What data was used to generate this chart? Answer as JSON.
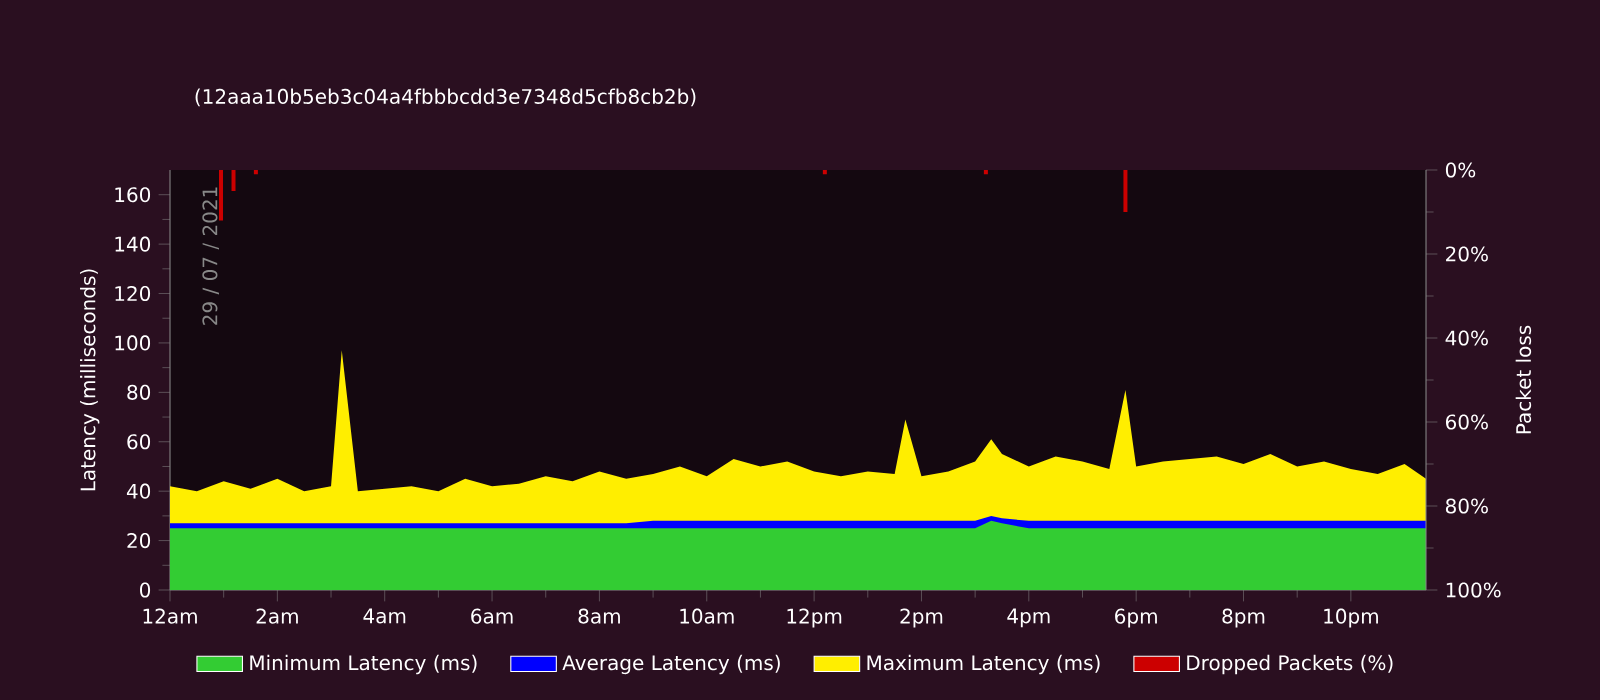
{
  "chart_data": {
    "type": "area",
    "title": "(12aaa10b5eb3c04a4fbbbcdd3e7348d5cfb8cb2b)",
    "ylabel": "Latency (milliseconds)",
    "y2label": "Packet loss",
    "annotations": [
      "29 / 07 / 2021"
    ],
    "x": [
      "2021-07-29T00:00",
      "2021-07-29T00:30",
      "2021-07-29T01:00",
      "2021-07-29T01:30",
      "2021-07-29T02:00",
      "2021-07-29T02:30",
      "2021-07-29T03:00",
      "2021-07-29T03:12",
      "2021-07-29T03:30",
      "2021-07-29T04:00",
      "2021-07-29T04:30",
      "2021-07-29T05:00",
      "2021-07-29T05:30",
      "2021-07-29T06:00",
      "2021-07-29T06:30",
      "2021-07-29T07:00",
      "2021-07-29T07:30",
      "2021-07-29T08:00",
      "2021-07-29T08:30",
      "2021-07-29T09:00",
      "2021-07-29T09:30",
      "2021-07-29T10:00",
      "2021-07-29T10:30",
      "2021-07-29T11:00",
      "2021-07-29T11:30",
      "2021-07-29T12:00",
      "2021-07-29T12:30",
      "2021-07-29T13:00",
      "2021-07-29T13:30",
      "2021-07-29T13:42",
      "2021-07-29T14:00",
      "2021-07-29T14:30",
      "2021-07-29T15:00",
      "2021-07-29T15:18",
      "2021-07-29T15:30",
      "2021-07-29T16:00",
      "2021-07-29T16:30",
      "2021-07-29T17:00",
      "2021-07-29T17:30",
      "2021-07-29T17:48",
      "2021-07-29T18:00",
      "2021-07-29T18:30",
      "2021-07-29T19:00",
      "2021-07-29T19:30",
      "2021-07-29T20:00",
      "2021-07-29T20:30",
      "2021-07-29T21:00",
      "2021-07-29T21:30",
      "2021-07-29T22:00",
      "2021-07-29T22:30",
      "2021-07-29T23:00",
      "2021-07-29T23:24"
    ],
    "series": [
      {
        "name": "Minimum Latency (ms)",
        "color": "#33cc33",
        "values": [
          25,
          25,
          25,
          25,
          25,
          25,
          25,
          25,
          25,
          25,
          25,
          25,
          25,
          25,
          25,
          25,
          25,
          25,
          25,
          25,
          25,
          25,
          25,
          25,
          25,
          25,
          25,
          25,
          25,
          25,
          25,
          25,
          25,
          28,
          27,
          25,
          25,
          25,
          25,
          25,
          25,
          25,
          25,
          25,
          25,
          25,
          25,
          25,
          25,
          25,
          25,
          25
        ]
      },
      {
        "name": "Average Latency (ms)",
        "color": "#0000ff",
        "values": [
          27,
          27,
          27,
          27,
          27,
          27,
          27,
          27,
          27,
          27,
          27,
          27,
          27,
          27,
          27,
          27,
          27,
          27,
          27,
          28,
          28,
          28,
          28,
          28,
          28,
          28,
          28,
          28,
          28,
          28,
          28,
          28,
          28,
          30,
          29,
          28,
          28,
          28,
          28,
          28,
          28,
          28,
          28,
          28,
          28,
          28,
          28,
          28,
          28,
          28,
          28,
          28
        ]
      },
      {
        "name": "Maximum Latency (ms)",
        "color": "#ffee00",
        "values": [
          42,
          40,
          44,
          41,
          45,
          40,
          42,
          97,
          40,
          41,
          42,
          40,
          45,
          42,
          43,
          46,
          44,
          48,
          45,
          47,
          50,
          46,
          53,
          50,
          52,
          48,
          46,
          48,
          47,
          69,
          46,
          48,
          52,
          61,
          55,
          50,
          54,
          52,
          49,
          81,
          50,
          52,
          53,
          54,
          51,
          55,
          50,
          52,
          49,
          47,
          51,
          45
        ]
      },
      {
        "name": "Dropped Packets (%)",
        "color": "#cc0000",
        "type": "bar",
        "axis": "y2",
        "x": [
          "2021-07-29T00:57",
          "2021-07-29T01:11",
          "2021-07-29T01:36",
          "2021-07-29T12:12",
          "2021-07-29T15:12",
          "2021-07-29T17:48"
        ],
        "values": [
          12,
          5,
          1,
          1,
          1,
          10
        ]
      }
    ],
    "xlim": [
      "2021-07-29T00:00",
      "2021-07-29T23:24"
    ],
    "xticks": [
      {
        "value": "2021-07-29T00:00",
        "label": "12am"
      },
      {
        "value": "2021-07-29T02:00",
        "label": "2am"
      },
      {
        "value": "2021-07-29T04:00",
        "label": "4am"
      },
      {
        "value": "2021-07-29T06:00",
        "label": "6am"
      },
      {
        "value": "2021-07-29T08:00",
        "label": "8am"
      },
      {
        "value": "2021-07-29T10:00",
        "label": "10am"
      },
      {
        "value": "2021-07-29T12:00",
        "label": "12pm"
      },
      {
        "value": "2021-07-29T14:00",
        "label": "2pm"
      },
      {
        "value": "2021-07-29T16:00",
        "label": "4pm"
      },
      {
        "value": "2021-07-29T18:00",
        "label": "6pm"
      },
      {
        "value": "2021-07-29T20:00",
        "label": "8pm"
      },
      {
        "value": "2021-07-29T22:00",
        "label": "10pm"
      }
    ],
    "ylim": [
      0,
      170
    ],
    "yticks": [
      0,
      20,
      40,
      60,
      80,
      100,
      120,
      140,
      160
    ],
    "y2lim": [
      100,
      0
    ],
    "y2ticks": [
      {
        "value": 0,
        "label": "0%"
      },
      {
        "value": 20,
        "label": "20%"
      },
      {
        "value": 40,
        "label": "40%"
      },
      {
        "value": 60,
        "label": "60%"
      },
      {
        "value": 80,
        "label": "80%"
      },
      {
        "value": 100,
        "label": "100%"
      }
    ],
    "legend": "bottom",
    "grid": false,
    "marker": "none"
  }
}
